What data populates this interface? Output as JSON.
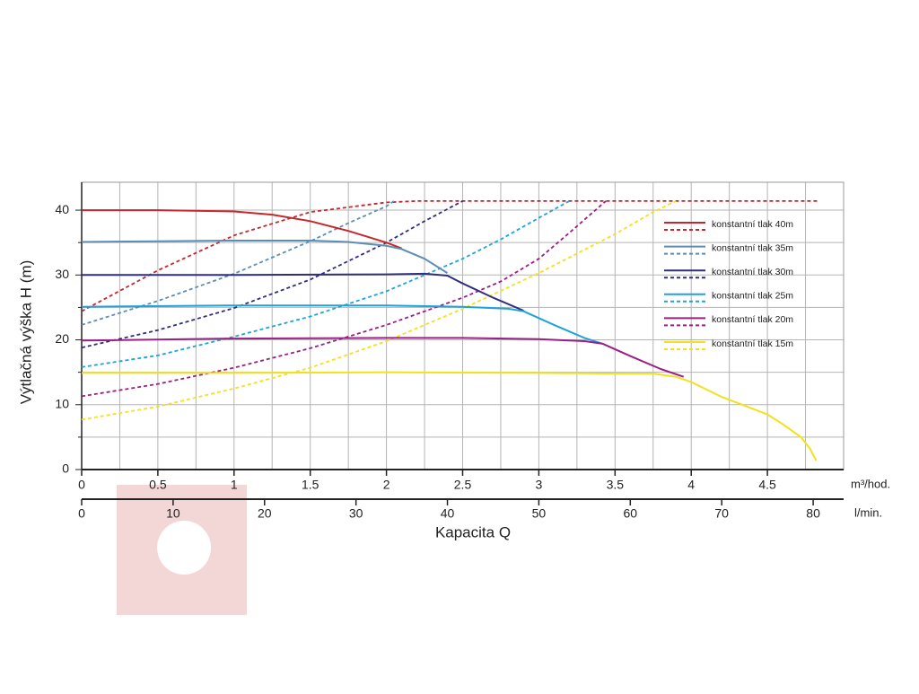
{
  "chart_data": {
    "type": "line",
    "y_label": "Výtlačná výška H (m)",
    "x_label": "Kapacita Q",
    "x_unit": "m³/hod.",
    "x2_unit": "l/min.",
    "xlim": [
      0,
      5
    ],
    "xticks": [
      0,
      0.5,
      1,
      1.5,
      2,
      2.5,
      3,
      3.5,
      4,
      4.5
    ],
    "x_minor_grid": [
      0.25,
      0.75,
      1.25,
      1.75,
      2.25,
      2.75,
      3.25,
      3.75,
      4.25,
      4.75
    ],
    "x2lim": [
      0,
      83.33
    ],
    "x2ticks": [
      0,
      10,
      20,
      30,
      40,
      50,
      60,
      70,
      80
    ],
    "ylim": [
      0,
      44.3
    ],
    "yticks": [
      0,
      10,
      20,
      30,
      40
    ],
    "y_minor_grid": [
      5,
      15,
      25,
      35
    ],
    "grid": true,
    "legend": "upper right",
    "series": [
      {
        "name": "konstantní tlak 40m",
        "color": "#c8262c",
        "x": [
          0,
          0.5,
          1,
          1.25,
          1.5,
          1.75,
          2,
          2.1
        ],
        "values": [
          40,
          40,
          39.8,
          39.3,
          38.3,
          36.8,
          35,
          34.1
        ],
        "dashed_x": [
          0,
          0.5,
          1,
          1.5,
          2,
          2.2,
          4.84
        ],
        "dashed_values": [
          24.4,
          30.7,
          36.1,
          39.7,
          41.2,
          41.4,
          41.4
        ]
      },
      {
        "name": "konstantní tlak 35m",
        "color": "#5b8db5",
        "x": [
          0,
          0.5,
          1,
          1.5,
          1.75,
          2,
          2.1,
          2.25,
          2.4
        ],
        "values": [
          35.1,
          35.2,
          35.3,
          35.3,
          35.1,
          34.5,
          34,
          32.5,
          30.3
        ],
        "dashed_x": [
          0,
          0.5,
          1,
          1.5,
          1.75,
          2,
          2.05
        ],
        "dashed_values": [
          22.3,
          26,
          30.2,
          35.2,
          38,
          40.6,
          41.4
        ]
      },
      {
        "name": "konstantní tlak 30m",
        "color": "#2e2f7f",
        "x": [
          0,
          1,
          2,
          2.25,
          2.4,
          2.5,
          2.7,
          2.9
        ],
        "values": [
          30,
          30,
          30.1,
          30.2,
          29.9,
          28.7,
          26.5,
          24.5
        ],
        "dashed_x": [
          0,
          0.5,
          1,
          1.5,
          2,
          2.25,
          2.5
        ],
        "dashed_values": [
          18.8,
          21.5,
          24.9,
          29.3,
          35,
          38.3,
          41.4
        ]
      },
      {
        "name": "konstantní tlak 25m",
        "color": "#1ea3dc",
        "x": [
          0,
          1,
          2,
          2.5,
          2.8,
          2.9,
          3.1,
          3.3,
          3.42
        ],
        "values": [
          25.1,
          25.3,
          25.3,
          25.1,
          24.8,
          24.4,
          22.3,
          20.3,
          19.4
        ],
        "dashed_x": [
          0,
          0.5,
          1,
          1.5,
          2,
          2.5,
          2.75,
          3,
          3.2
        ],
        "dashed_values": [
          15.8,
          17.6,
          20.5,
          23.6,
          27.5,
          32.5,
          35.5,
          38.8,
          41.4
        ]
      },
      {
        "name": "konstantní tlak 20m",
        "color": "#9c1f84",
        "x": [
          0,
          1,
          2,
          2.5,
          3,
          3.3,
          3.42,
          3.6,
          3.8,
          3.95
        ],
        "values": [
          19.9,
          20.2,
          20.3,
          20.3,
          20.1,
          19.8,
          19.4,
          17.5,
          15.5,
          14.3
        ],
        "dashed_x": [
          0,
          0.5,
          1,
          1.5,
          2,
          2.5,
          2.75,
          3,
          3.2,
          3.44
        ],
        "dashed_values": [
          11.3,
          13.2,
          15.7,
          18.7,
          22.3,
          26.5,
          29,
          32.5,
          36.5,
          41.4
        ]
      },
      {
        "name": "konstantní tlak 15m",
        "color": "#f2e21c",
        "x": [
          0,
          1,
          2,
          3,
          3.5,
          3.75,
          3.9,
          4,
          4.2,
          4.5,
          4.6,
          4.72,
          4.78,
          4.82
        ],
        "values": [
          14.9,
          14.9,
          15,
          14.9,
          14.8,
          14.8,
          14.3,
          13.5,
          11.2,
          8.5,
          7,
          5,
          3.2,
          1.4
        ],
        "dashed_x": [
          0,
          0.5,
          1,
          1.5,
          2,
          2.5,
          3,
          3.5,
          3.75,
          3.9
        ],
        "dashed_values": [
          7.7,
          9.7,
          12.5,
          15.7,
          19.8,
          24.8,
          30.3,
          36.3,
          39.7,
          41.4
        ]
      }
    ]
  }
}
